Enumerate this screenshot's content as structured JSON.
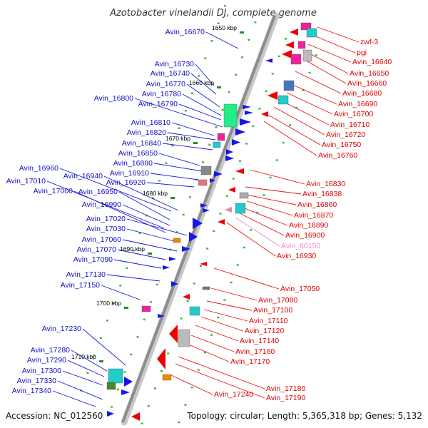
{
  "title": "Azotobacter vinelandii DJ, complete genome",
  "accession": "Accession: NC_012560",
  "topology": "Topology: circular; Length: 5,365,318 bp; Genes: 5,132",
  "kbp_marks": [
    "1650 kbp",
    "1660 kbp",
    "1670 kbp",
    "1680 kbp",
    "1690 kbp",
    "1700 kbp",
    "1710 kbp"
  ],
  "left_labels": [
    "Avin_16670",
    "Avin_16730",
    "Avin_16740",
    "Avin_16770",
    "Avin_16780",
    "Avin_16800",
    "Avin_16790",
    "Avin_16810",
    "Avin_16820",
    "Avin_16840",
    "Avin_16850",
    "Avin_16880",
    "Avin_16960",
    "Avin_16940",
    "Avin_16910",
    "Avin_17010",
    "Avin_16920",
    "Avin_17000",
    "Avin_16950",
    "Avin_16990",
    "Avin_17020",
    "Avin_17030",
    "Avin_17060",
    "Avin_17070",
    "Avin_17090",
    "Avin_17130",
    "Avin_17150",
    "Avin_17230",
    "Avin_17280",
    "Avin_17290",
    "Avin_17300",
    "Avin_17330",
    "Avin_17340"
  ],
  "right_labels": [
    "zwf-3",
    "pgi",
    "Avin_16640",
    "Avin_16650",
    "Avin_16660",
    "Avin_16680",
    "Avin_16690",
    "Avin_16700",
    "Avin_16710",
    "Avin_16720",
    "Avin_16750",
    "Avin_16760",
    "Avin_16830",
    "Avin_16838",
    "Avin_16860",
    "Avin_16870",
    "Avin_16890",
    "Avin_16900",
    "Avin_60150",
    "Avin_16930",
    "Avin_17050",
    "Avin_17080",
    "Avin_17100",
    "Avin_17110",
    "Avin_17120",
    "Avin_17140",
    "Avin_17160",
    "Avin_17170",
    "Avin_17180",
    "Avin_17190",
    "Avin_17240"
  ],
  "colors": {
    "left_label": "#1010c8",
    "right_label": "#e00000",
    "pseudo_label": "#ee88cc",
    "backbone": "#999999",
    "tick": "#22aa22",
    "tick_dot": "#33bb33"
  }
}
